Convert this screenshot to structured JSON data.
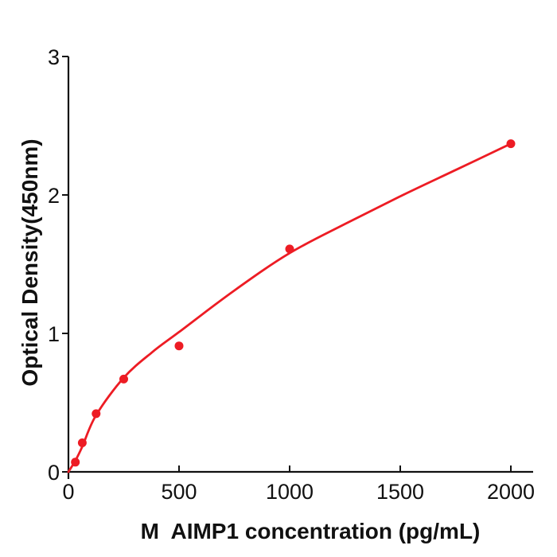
{
  "figure": {
    "background": "#ffffff"
  },
  "chart_data": {
    "type": "scatter",
    "title": "",
    "xlabel": "M  AIMP1 concentration (pg/mL)",
    "ylabel": "Optical Density(450nm)",
    "x_ticks": [
      0,
      500,
      1000,
      1500,
      2000
    ],
    "x_tick_labels": [
      "0",
      "500",
      "1000",
      "1500",
      "2000"
    ],
    "y_ticks": [
      0,
      1,
      2,
      3
    ],
    "y_tick_labels": [
      "0",
      "1",
      "2",
      "3"
    ],
    "xlim": [
      0,
      2100
    ],
    "ylim": [
      0,
      3
    ],
    "grid": false,
    "legend_position": "none",
    "axis_color": "#111111",
    "series": [
      {
        "name": "standard-curve-points",
        "marker": "circle",
        "marker_color": "#ED1C24",
        "points": [
          [
            31.25,
            0.07
          ],
          [
            62.5,
            0.21
          ],
          [
            125,
            0.42
          ],
          [
            250,
            0.67
          ],
          [
            500,
            0.91
          ],
          [
            1000,
            1.61
          ],
          [
            2000,
            2.37
          ]
        ]
      }
    ],
    "fit_curve": {
      "name": "fitted-standard-curve",
      "color": "#ED1C24",
      "samples": [
        [
          0,
          0
        ],
        [
          31,
          0.08
        ],
        [
          62,
          0.18
        ],
        [
          125,
          0.41
        ],
        [
          250,
          0.68
        ],
        [
          375,
          0.86
        ],
        [
          500,
          1.01
        ],
        [
          750,
          1.31
        ],
        [
          1000,
          1.58
        ],
        [
          1250,
          1.79
        ],
        [
          1500,
          1.99
        ],
        [
          1750,
          2.18
        ],
        [
          2000,
          2.37
        ]
      ]
    }
  }
}
